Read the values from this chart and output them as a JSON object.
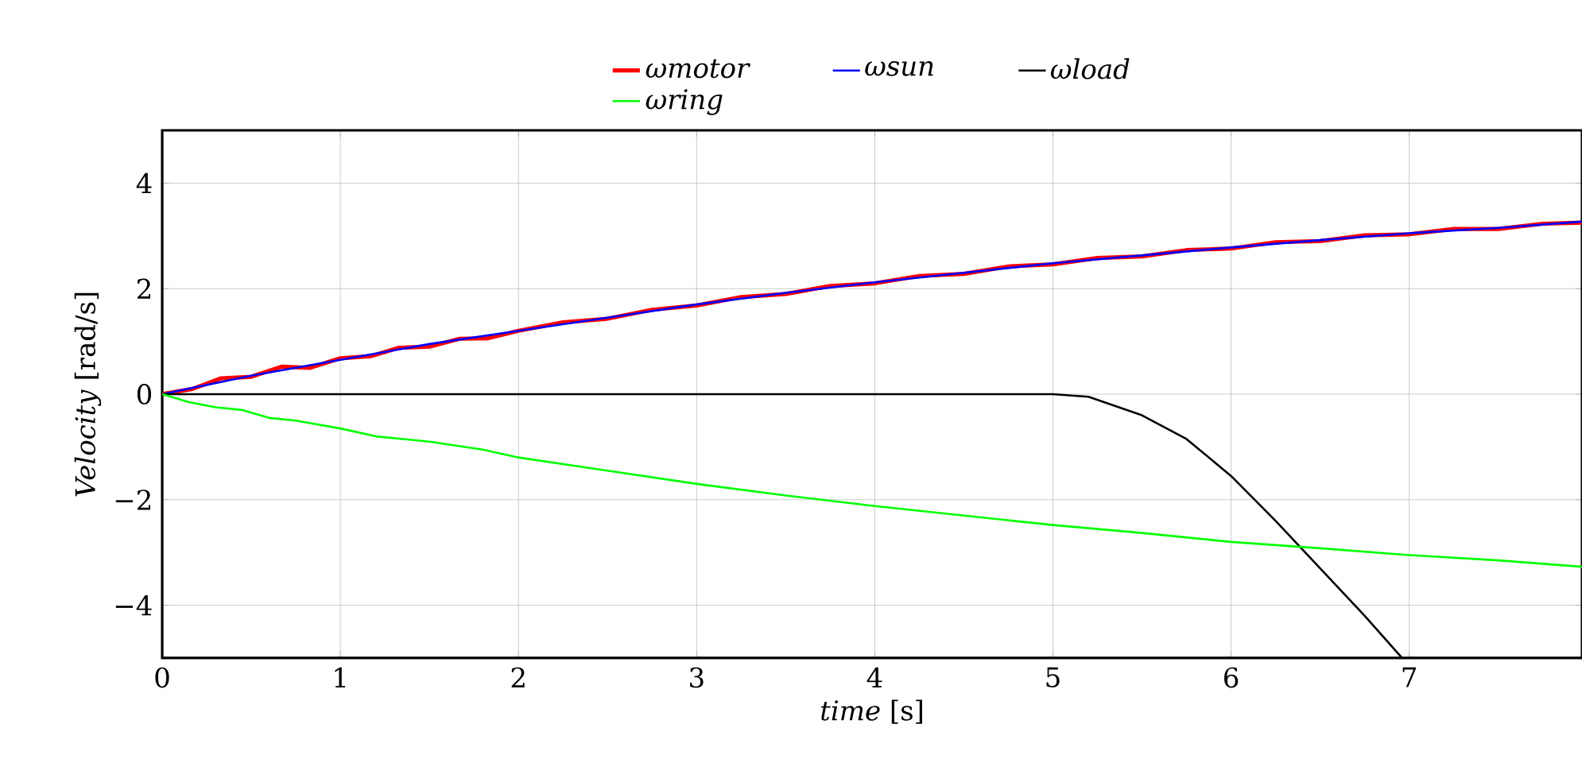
{
  "chart_data": {
    "type": "line",
    "xlabel": "*time* [s]",
    "ylabel": "*Velocity* [rad/s]",
    "xlim": [
      0,
      7.97
    ],
    "ylim": [
      -5,
      5
    ],
    "xticks": [
      0,
      1,
      2,
      3,
      4,
      5,
      6,
      7
    ],
    "yticks": [
      {
        "value": -4,
        "label": "−4"
      },
      {
        "value": -2,
        "label": "−2"
      },
      0,
      2,
      4
    ],
    "grid": true,
    "legend": "top",
    "line_style": "solid",
    "series": [
      {
        "name": "ωmotor",
        "color": "#ff0000",
        "x": [
          0,
          0.17,
          0.33,
          0.5,
          0.67,
          0.83,
          1,
          1.17,
          1.33,
          1.5,
          1.67,
          1.83,
          2,
          2.25,
          2.5,
          2.75,
          3,
          3.25,
          3.5,
          3.75,
          4,
          4.25,
          4.5,
          4.75,
          5,
          5.25,
          5.5,
          5.75,
          6,
          6.25,
          6.5,
          6.75,
          7,
          7.25,
          7.5,
          7.75,
          7.97
        ],
        "values": [
          0,
          0.1,
          0.3,
          0.33,
          0.52,
          0.5,
          0.68,
          0.72,
          0.88,
          0.9,
          1.05,
          1.06,
          1.2,
          1.36,
          1.43,
          1.6,
          1.68,
          1.84,
          1.9,
          2.05,
          2.1,
          2.24,
          2.28,
          2.42,
          2.46,
          2.58,
          2.61,
          2.73,
          2.76,
          2.88,
          2.9,
          3.01,
          3.03,
          3.13,
          3.13,
          3.23,
          3.25
        ]
      },
      {
        "name": "ωsun",
        "color": "#0000ff",
        "x": [
          0,
          0.5,
          1,
          1.5,
          2,
          2.5,
          3,
          3.5,
          4,
          4.5,
          5,
          5.5,
          6,
          6.5,
          7,
          7.5,
          7.97
        ],
        "values": [
          0,
          0.35,
          0.65,
          0.95,
          1.2,
          1.45,
          1.7,
          1.92,
          2.12,
          2.3,
          2.48,
          2.63,
          2.78,
          2.92,
          3.05,
          3.15,
          3.27
        ]
      },
      {
        "name": "ωload",
        "color": "#000000",
        "x": [
          0,
          5,
          5.2,
          5.5,
          5.75,
          6,
          6.25,
          6.5,
          6.75,
          6.96
        ],
        "values": [
          0,
          0,
          -0.05,
          -0.4,
          -0.85,
          -1.55,
          -2.4,
          -3.3,
          -4.2,
          -5
        ]
      },
      {
        "name": "ωring",
        "color": "#00ff00",
        "x": [
          0,
          0.15,
          0.3,
          0.45,
          0.6,
          0.75,
          1,
          1.2,
          1.5,
          1.8,
          2,
          2.5,
          3,
          3.5,
          4,
          4.5,
          5,
          5.5,
          6,
          6.5,
          7,
          7.5,
          7.97
        ],
        "values": [
          0,
          -0.15,
          -0.25,
          -0.3,
          -0.45,
          -0.5,
          -0.65,
          -0.8,
          -0.9,
          -1.05,
          -1.2,
          -1.45,
          -1.7,
          -1.92,
          -2.12,
          -2.3,
          -2.48,
          -2.63,
          -2.8,
          -2.92,
          -3.05,
          -3.15,
          -3.27
        ]
      }
    ]
  }
}
